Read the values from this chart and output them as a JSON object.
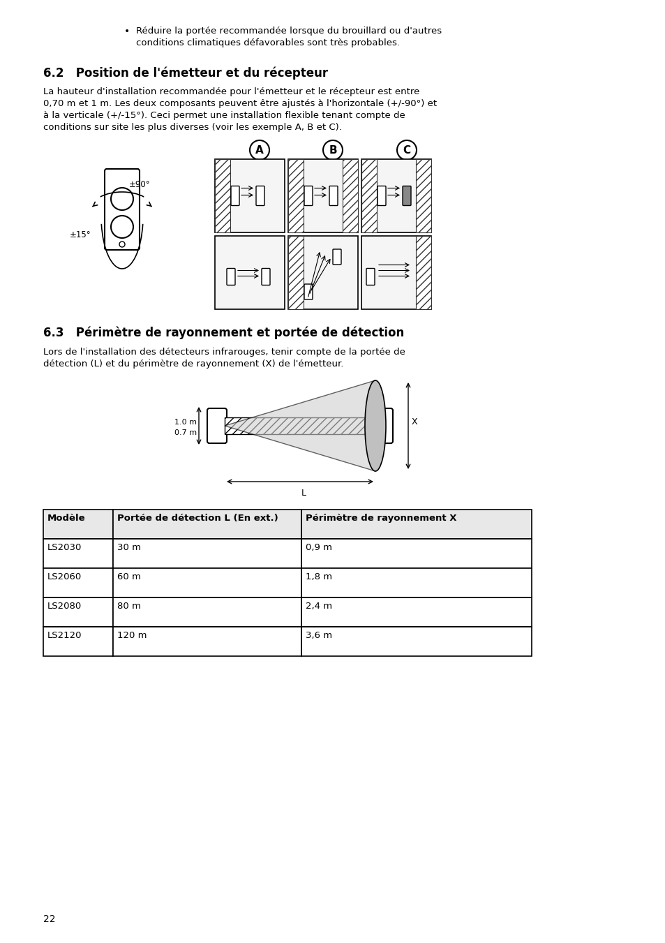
{
  "bg_color": "#ffffff",
  "text_color": "#000000",
  "page_number": "22",
  "bullet_text": "Réduire la portée recommandée lorsque du brouillard ou d'autres\nconditions climatiques défavorables sont très probables.",
  "section_62_title": "6.2   Position de l'émetteur et du récepteur",
  "section_62_body": "La hauteur d'installation recommandée pour l'émetteur et le récepteur est entre\n0,70 m et 1 m. Les deux composants peuvent être ajustés à l'horizontale (+/-90°) et\nà la verticale (+/-15°). Ceci permet une installation flexible tenant compte de\nconditions sur site les plus diverses (voir les exemple A, B et C).",
  "section_63_title": "6.3   Périmètre de rayonnement et portée de détection",
  "section_63_body": "Lors de l'installation des détecteurs infrarouges, tenir compte de la portée de\ndétection (L) et du périmètre de rayonnement (X) de l'émetteur.",
  "table_headers": [
    "Modèle",
    "Portée de détection L (En ext.)",
    "Périmètre de rayonnement X"
  ],
  "table_rows": [
    [
      "LS2030",
      "30 m",
      "0,9 m"
    ],
    [
      "LS2060",
      "60 m",
      "1,8 m"
    ],
    [
      "LS2080",
      "80 m",
      "2,4 m"
    ],
    [
      "LS2120",
      "120 m",
      "3,6 m"
    ]
  ]
}
